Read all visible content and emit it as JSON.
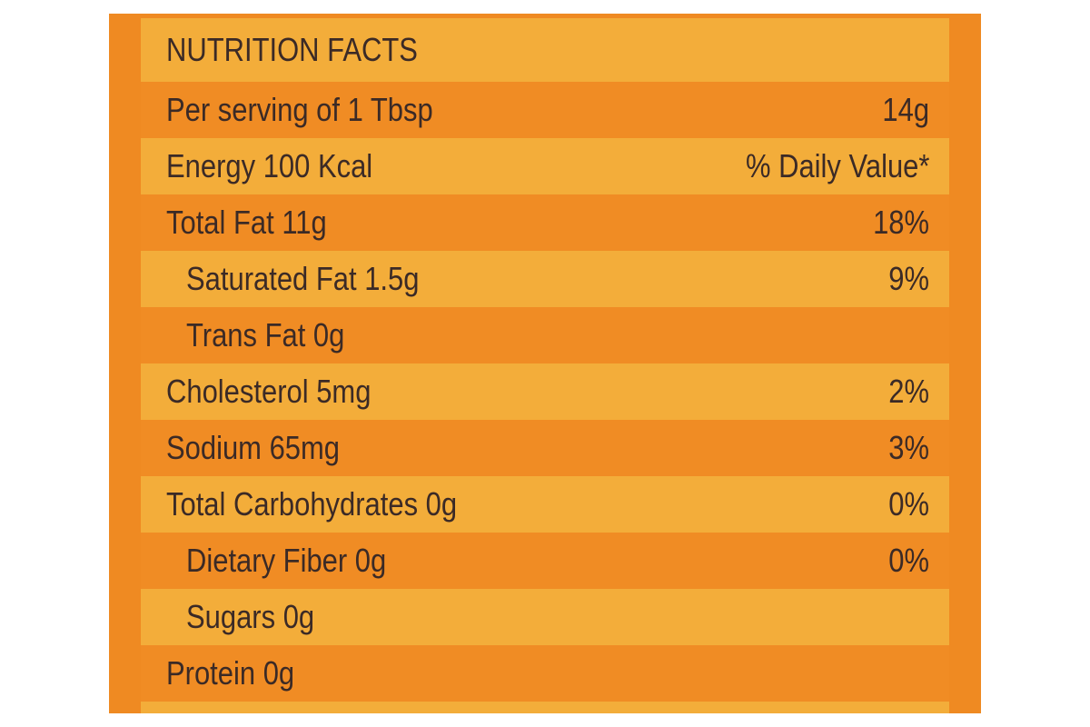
{
  "header": {
    "title": "NUTRITION FACTS"
  },
  "table": {
    "rows": [
      [
        "Per serving of 1 Tbsp",
        "14g"
      ],
      [
        "Energy 100 Kcal",
        "% Daily Value*"
      ],
      [
        "Total Fat 11g",
        "18%"
      ],
      [
        "Saturated Fat 1.5g",
        "9%"
      ],
      [
        "Trans Fat 0g"
      ],
      [
        "Cholesterol 5mg",
        "2%"
      ],
      [
        "Sodium 65mg",
        "3%"
      ],
      [
        "Total Carbohydrates 0g",
        "0%"
      ],
      [
        "Dietary Fiber 0g",
        "0%"
      ],
      [
        "Sugars 0g"
      ],
      [
        "Protein 0g"
      ]
    ]
  }
}
